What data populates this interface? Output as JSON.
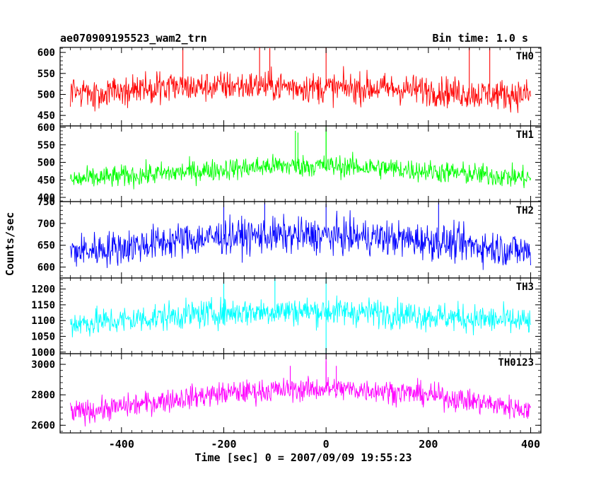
{
  "header": {
    "title": "ae070909195523_wam2_trn",
    "bin_time": "Bin time: 1.0 s"
  },
  "chart_data": {
    "type": "line",
    "title": "ae070909195523_wam2_trn",
    "subtitle": "Bin time: 1.0 s",
    "xlabel": "Time [sec] 0 = 2007/09/09 19:55:23",
    "ylabel": "Counts/sec",
    "xlim": [
      -520,
      420
    ],
    "x_ticks": [
      -400,
      -200,
      0,
      200,
      400
    ],
    "x_range_data": [
      -500,
      400
    ],
    "bin_time_sec": 1.0,
    "grid": false,
    "panels": [
      {
        "name": "TH0",
        "color": "#ff0000",
        "ylim": [
          425,
          612
        ],
        "y_ticks": [
          450,
          500,
          550,
          600
        ],
        "profile": [
          [
            -500,
            500
          ],
          [
            -400,
            510
          ],
          [
            -300,
            515
          ],
          [
            -200,
            520
          ],
          [
            -100,
            520
          ],
          [
            0,
            515
          ],
          [
            100,
            515
          ],
          [
            200,
            510
          ],
          [
            300,
            500
          ],
          [
            400,
            500
          ]
        ],
        "noise_range": 40,
        "spikes": [
          [
            -280,
            610
          ],
          [
            -130,
            612
          ],
          [
            -110,
            610
          ],
          [
            0,
            612
          ],
          [
            280,
            612
          ],
          [
            320,
            610
          ]
        ]
      },
      {
        "name": "TH1",
        "color": "#00ff00",
        "ylim": [
          388,
          604
        ],
        "y_ticks": [
          400,
          450,
          500,
          550,
          600
        ],
        "profile": [
          [
            -500,
            450
          ],
          [
            -400,
            460
          ],
          [
            -300,
            470
          ],
          [
            -200,
            480
          ],
          [
            -100,
            490
          ],
          [
            0,
            490
          ],
          [
            100,
            485
          ],
          [
            200,
            475
          ],
          [
            300,
            465
          ],
          [
            400,
            455
          ]
        ],
        "noise_range": 35,
        "spikes": [
          [
            -60,
            590
          ],
          [
            -55,
            585
          ],
          [
            0,
            602
          ],
          [
            0,
            595
          ]
        ]
      },
      {
        "name": "TH2",
        "color": "#0000ff",
        "ylim": [
          575,
          750
        ],
        "y_ticks": [
          600,
          650,
          700,
          750
        ],
        "profile": [
          [
            -500,
            635
          ],
          [
            -400,
            645
          ],
          [
            -300,
            660
          ],
          [
            -200,
            670
          ],
          [
            -100,
            672
          ],
          [
            0,
            672
          ],
          [
            100,
            668
          ],
          [
            200,
            660
          ],
          [
            300,
            648
          ],
          [
            400,
            635
          ]
        ],
        "noise_range": 45,
        "spikes": [
          [
            -200,
            750
          ],
          [
            -120,
            748
          ],
          [
            0,
            745
          ],
          [
            220,
            748
          ]
        ]
      },
      {
        "name": "TH3",
        "color": "#00ffff",
        "ylim": [
          995,
          1235
        ],
        "y_ticks": [
          1000,
          1050,
          1100,
          1150,
          1200
        ],
        "profile": [
          [
            -500,
            1090
          ],
          [
            -400,
            1100
          ],
          [
            -300,
            1115
          ],
          [
            -200,
            1125
          ],
          [
            -100,
            1130
          ],
          [
            0,
            1130
          ],
          [
            100,
            1125
          ],
          [
            200,
            1115
          ],
          [
            300,
            1105
          ],
          [
            400,
            1095
          ]
        ],
        "noise_range": 50,
        "spikes": [
          [
            -200,
            1235
          ],
          [
            -100,
            1235
          ],
          [
            0,
            1235
          ],
          [
            0,
            995
          ]
        ]
      },
      {
        "name": "TH0123",
        "color": "#ff00ff",
        "ylim": [
          2550,
          3070
        ],
        "y_ticks": [
          2600,
          2800,
          3000
        ],
        "profile": [
          [
            -500,
            2680
          ],
          [
            -400,
            2720
          ],
          [
            -300,
            2770
          ],
          [
            -200,
            2810
          ],
          [
            -100,
            2830
          ],
          [
            0,
            2840
          ],
          [
            100,
            2830
          ],
          [
            200,
            2800
          ],
          [
            300,
            2750
          ],
          [
            400,
            2700
          ]
        ],
        "noise_range": 85,
        "spikes": [
          [
            -70,
            2990
          ],
          [
            0,
            3070
          ],
          [
            0,
            3020
          ],
          [
            20,
            2990
          ]
        ]
      }
    ]
  }
}
